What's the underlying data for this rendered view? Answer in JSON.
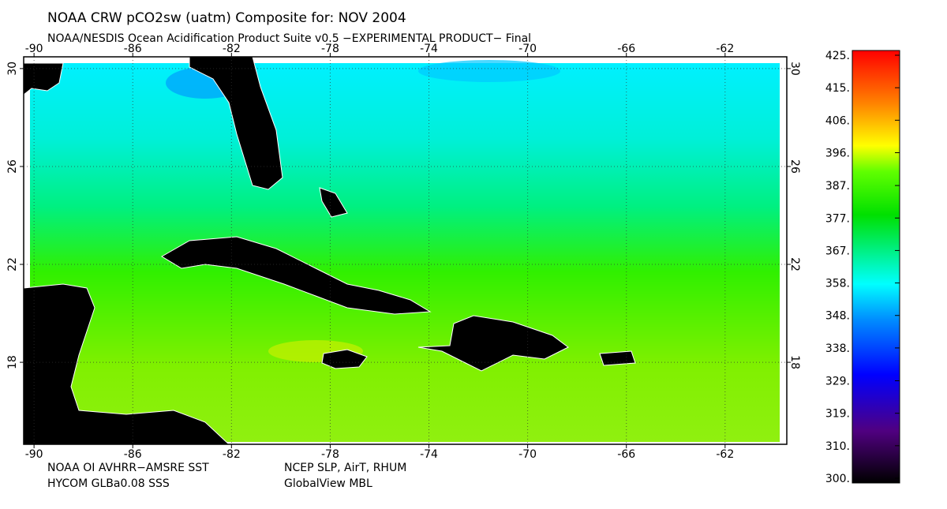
{
  "header": {
    "title": "NOAA CRW pCO2sw (uatm) Composite for: NOV 2004",
    "subtitle": "NOAA/NESDIS Ocean Acidification Product Suite  v0.5 −EXPERIMENTAL PRODUCT−   Final"
  },
  "map": {
    "lon_lim": [
      -90.42,
      -59.5
    ],
    "lat_lim": [
      30.48,
      14.65
    ],
    "lon_ticks": [
      -90,
      -86,
      -82,
      -78,
      -74,
      -70,
      -66,
      -62
    ],
    "lat_ticks": [
      30,
      26,
      22,
      18
    ],
    "grid": true
  },
  "colorbar": {
    "range": [
      300,
      425
    ],
    "ticks": [
      {
        "value": 425,
        "label": "425."
      },
      {
        "value": 415.4,
        "label": "415."
      },
      {
        "value": 405.8,
        "label": "406."
      },
      {
        "value": 396.2,
        "label": "396."
      },
      {
        "value": 386.5,
        "label": "387."
      },
      {
        "value": 376.9,
        "label": "377."
      },
      {
        "value": 367.3,
        "label": "367."
      },
      {
        "value": 357.7,
        "label": "358."
      },
      {
        "value": 348.1,
        "label": "348."
      },
      {
        "value": 338.5,
        "label": "338."
      },
      {
        "value": 328.8,
        "label": "329."
      },
      {
        "value": 319.2,
        "label": "319."
      },
      {
        "value": 309.6,
        "label": "310."
      },
      {
        "value": 300,
        "label": "300."
      }
    ]
  },
  "footer": [
    [
      "NOAA OI AVHRR−AMSRE SST",
      "NCEP SLP, AirT, RHUM"
    ],
    [
      "HYCOM GLBa0.08 SSS",
      "GlobalView MBL"
    ]
  ]
}
